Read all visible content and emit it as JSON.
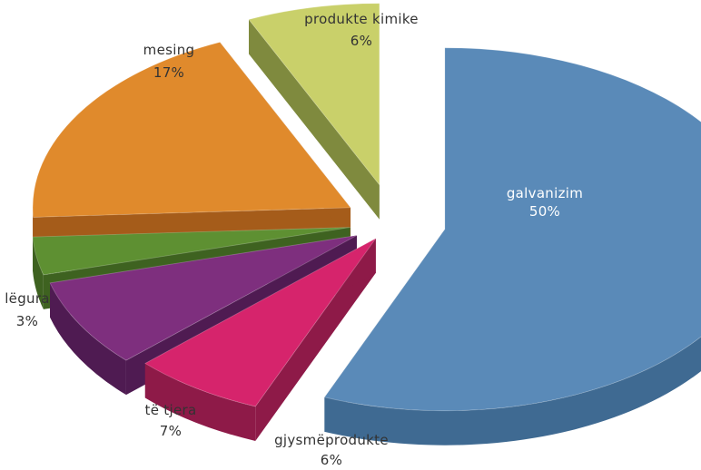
{
  "chart_data": {
    "type": "pie",
    "style": "3d-exploded",
    "title": "",
    "legend": "none",
    "slices": [
      {
        "label": "galvanizim",
        "value": 50,
        "display": "50%",
        "color": "#5a8ab8",
        "side_color": "#3f6a92",
        "label_color": "#ffffff"
      },
      {
        "label": "gjysmëprodukte",
        "value": 6,
        "display": "6%",
        "color": "#d6246c",
        "side_color": "#8e1a48",
        "label_color": "#333333"
      },
      {
        "label": "të tjera",
        "value": 7,
        "display": "7%",
        "color": "#7e2f7e",
        "side_color": "#4f1b52",
        "label_color": "#333333"
      },
      {
        "label": "lëgura",
        "value": 3,
        "display": "3%",
        "color": "#5e9032",
        "side_color": "#3e6220",
        "label_color": "#333333"
      },
      {
        "label": "mesing",
        "value": 17,
        "display": "17%",
        "color": "#e08a2c",
        "side_color": "#a55c1a",
        "label_color": "#333333"
      },
      {
        "label": "produkte kimike",
        "value": 6,
        "display": "6%",
        "color": "#c9d06a",
        "side_color": "#7f8a3e",
        "label_color": "#333333"
      }
    ]
  }
}
